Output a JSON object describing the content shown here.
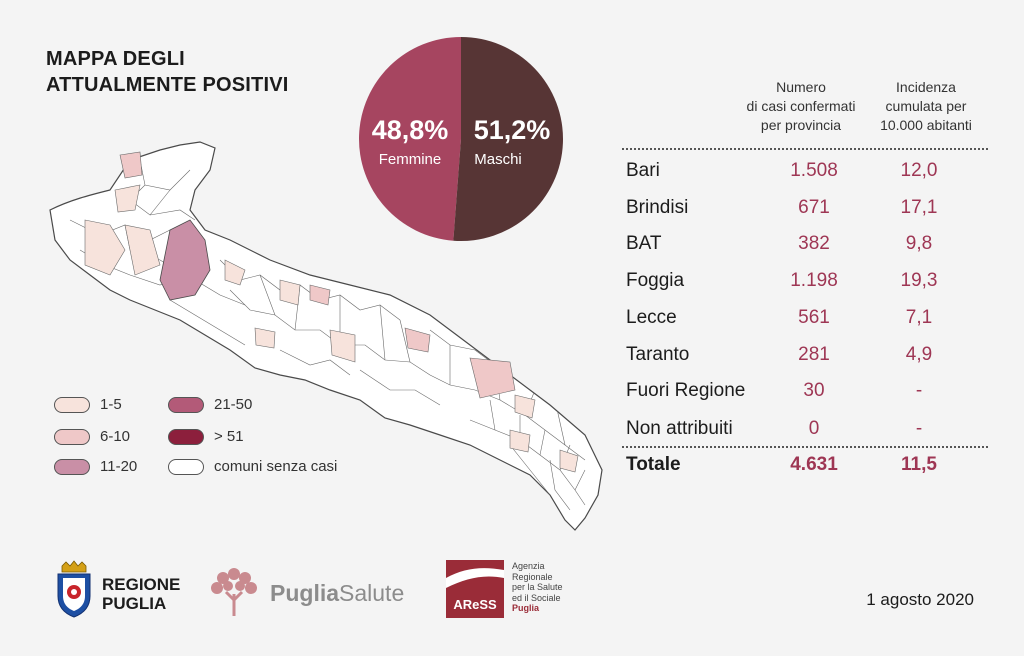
{
  "title": {
    "line1": "MAPPA DEGLI",
    "line2": "ATTUALMENTE POSITIVI"
  },
  "colors": {
    "femmine": "#a64560",
    "maschi": "#573535",
    "accent_value": "#9e3654",
    "map_outline": "#4a4a4a"
  },
  "pie": {
    "femmine_pct": "48,8%",
    "femmine_label": "Femmine",
    "maschi_pct": "51,2%",
    "maschi_label": "Maschi"
  },
  "legend": [
    {
      "label": "1-5",
      "color": "#f7e3dc"
    },
    {
      "label": "6-10",
      "color": "#efc8c8"
    },
    {
      "label": "11-20",
      "color": "#c98fa6"
    },
    {
      "label": "21-50",
      "color": "#b35a78"
    },
    {
      "label": "> 51",
      "color": "#8c1f3c"
    },
    {
      "label": "comuni senza casi",
      "color": "#ffffff"
    }
  ],
  "table": {
    "col1_header": "Numero\ndi casi confermati\nper provincia",
    "col2_header": "Incidenza\ncumulata per\n10.000 abitanti",
    "rows": [
      {
        "name": "Bari",
        "cases": "1.508",
        "incidence": "12,0"
      },
      {
        "name": "Brindisi",
        "cases": "671",
        "incidence": "17,1"
      },
      {
        "name": "BAT",
        "cases": "382",
        "incidence": "9,8"
      },
      {
        "name": "Foggia",
        "cases": "1.198",
        "incidence": "19,3"
      },
      {
        "name": "Lecce",
        "cases": "561",
        "incidence": "7,1"
      },
      {
        "name": "Taranto",
        "cases": "281",
        "incidence": "4,9"
      },
      {
        "name": "Fuori Regione",
        "cases": "30",
        "incidence": "-"
      },
      {
        "name": "Non attribuiti",
        "cases": "0",
        "incidence": "-"
      }
    ],
    "total": {
      "name": "Totale",
      "cases": "4.631",
      "incidence": "11,5"
    }
  },
  "chart_data": {
    "type": "pie",
    "categories": [
      "Femmine",
      "Maschi"
    ],
    "values": [
      48.8,
      51.2
    ],
    "labels": [
      "48,8%",
      "51,2%"
    ]
  },
  "footer": {
    "regione_line1": "REGIONE",
    "regione_line2": "PUGLIA",
    "puglia_bold": "Puglia",
    "puglia_light": "Salute",
    "aress_mark": "AReSS",
    "aress_text": "Agenzia\nRegionale\nper la Salute\ned il Sociale",
    "aress_accent": "Puglia",
    "date": "1 agosto 2020"
  }
}
